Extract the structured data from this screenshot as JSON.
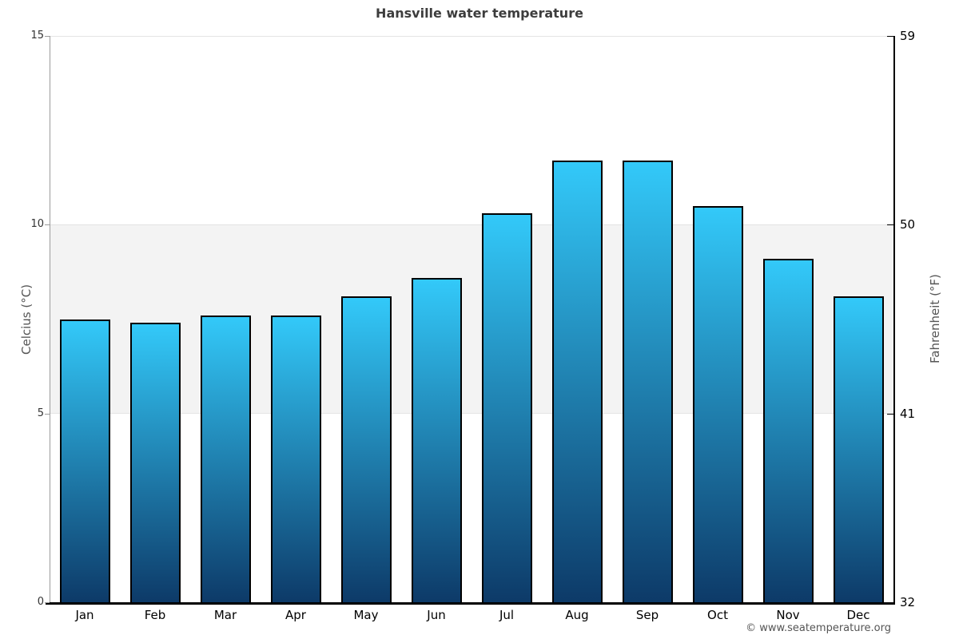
{
  "title": "Hansville water temperature",
  "footer": {
    "credit": "© www.seatemperature.org"
  },
  "axes": {
    "left": {
      "label": "Celcius (°C)",
      "ticks": [
        15,
        10,
        5,
        0
      ]
    },
    "right": {
      "label": "Fahrenheit (°F)",
      "ticks": [
        59,
        50,
        41,
        32
      ]
    }
  },
  "chart_data": {
    "type": "bar",
    "title": "Hansville water temperature",
    "categories": [
      "Jan",
      "Feb",
      "Mar",
      "Apr",
      "May",
      "Jun",
      "Jul",
      "Aug",
      "Sep",
      "Oct",
      "Nov",
      "Dec"
    ],
    "values": [
      7.5,
      7.4,
      7.6,
      7.6,
      8.1,
      8.6,
      10.3,
      11.7,
      11.7,
      10.5,
      9.1,
      8.1
    ],
    "xlabel": "",
    "ylabel_left": "Celcius (°C)",
    "ylabel_right": "Fahrenheit (°F)",
    "ylim": [
      0,
      15
    ],
    "ylim_fahrenheit": [
      32,
      59
    ],
    "legend": "none",
    "grid": "horizontal band between 5 and 10 °C, gridline at 15 °C",
    "band_celsius": [
      5,
      10
    ],
    "band_color": "#f3f3f3",
    "bar_color_top": "#33c9f9",
    "bar_color_bottom": "#0d3a68",
    "bar_border_color": "#000000",
    "axis_color_left": "#9b9b9b",
    "axis_color_right": "#000000",
    "axis_color_bottom": "#000000"
  }
}
